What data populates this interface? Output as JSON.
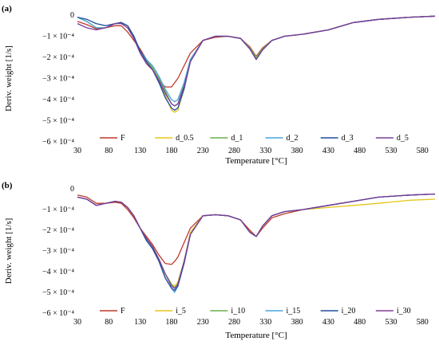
{
  "figure": {
    "panel_labels": [
      "(a)",
      "(b)"
    ]
  },
  "chart_data": [
    {
      "type": "line",
      "panel": "(a)",
      "xlabel": "Temperature [°C]",
      "ylabel": "Deriv. weight [1/s]",
      "x_ticks": [
        30,
        80,
        130,
        180,
        230,
        280,
        330,
        380,
        430,
        480,
        530,
        580
      ],
      "y_ticks": [
        "0",
        "−1 × 10⁻⁴",
        "−2 × 10⁻⁴",
        "−3 × 10⁻⁴",
        "−4 × 10⁻⁴",
        "−5 × 10⁻⁴",
        "−6 × 10⁻⁴"
      ],
      "xlim": [
        30,
        600
      ],
      "ylim": [
        -0.0006,
        0
      ],
      "x": [
        30,
        45,
        60,
        75,
        90,
        100,
        110,
        120,
        130,
        140,
        150,
        160,
        170,
        180,
        185,
        190,
        200,
        210,
        230,
        250,
        270,
        290,
        305,
        315,
        325,
        340,
        360,
        390,
        430,
        470,
        510,
        560,
        600
      ],
      "series": [
        {
          "name": "F",
          "color": "#c0392b",
          "values": [
            -3e-05,
            -4.5e-05,
            -6.5e-05,
            -6e-05,
            -5e-05,
            -5e-05,
            -8e-05,
            -0.00012,
            -0.00016,
            -0.00021,
            -0.00026,
            -0.00031,
            -0.00034,
            -0.00034,
            -0.00032,
            -0.0003,
            -0.00024,
            -0.00018,
            -0.00012,
            -0.000105,
            -0.0001,
            -0.00011,
            -0.00015,
            -0.000195,
            -0.000155,
            -0.00012,
            -0.0001,
            -9e-05,
            -7e-05,
            -3.5e-05,
            -2e-05,
            -1e-05,
            -5e-06
          ]
        },
        {
          "name": "d_0.5",
          "color": "#e6c619",
          "values": [
            -1e-05,
            -3e-05,
            -6e-05,
            -6e-05,
            -4e-05,
            -3.5e-05,
            -5e-05,
            -0.0001,
            -0.00017,
            -0.00022,
            -0.00025,
            -0.00031,
            -0.00038,
            -0.00045,
            -0.00046,
            -0.00045,
            -0.00035,
            -0.00022,
            -0.00012,
            -0.0001,
            -0.0001,
            -0.00011,
            -0.000155,
            -0.0002,
            -0.00016,
            -0.00012,
            -0.0001,
            -9e-05,
            -7e-05,
            -3.5e-05,
            -2e-05,
            -1e-05,
            -5e-06
          ]
        },
        {
          "name": "d_1",
          "color": "#6ab04c",
          "values": [
            -1e-05,
            -3e-05,
            -6e-05,
            -6e-05,
            -4e-05,
            -3.5e-05,
            -5e-05,
            -0.0001,
            -0.00017,
            -0.00021,
            -0.00025,
            -0.0003,
            -0.00036,
            -0.00042,
            -0.00043,
            -0.00042,
            -0.00033,
            -0.00021,
            -0.00012,
            -0.0001,
            -0.0001,
            -0.00011,
            -0.000155,
            -0.0002,
            -0.00016,
            -0.00012,
            -0.0001,
            -9e-05,
            -7e-05,
            -3.5e-05,
            -2e-05,
            -1e-05,
            -5e-06
          ]
        },
        {
          "name": "d_2",
          "color": "#4aa3df",
          "values": [
            -1e-05,
            -3e-05,
            -6e-05,
            -6e-05,
            -4e-05,
            -3.5e-05,
            -5e-05,
            -0.0001,
            -0.00017,
            -0.00021,
            -0.00024,
            -0.00029,
            -0.00035,
            -0.0004,
            -0.00041,
            -0.0004,
            -0.00032,
            -0.00021,
            -0.00012,
            -0.0001,
            -0.0001,
            -0.00011,
            -0.00016,
            -0.00021,
            -0.000165,
            -0.00012,
            -0.0001,
            -9e-05,
            -7e-05,
            -3.5e-05,
            -2e-05,
            -1e-05,
            -5e-06
          ]
        },
        {
          "name": "d_3",
          "color": "#1f4e9c",
          "values": [
            -1e-05,
            -2e-05,
            -4e-05,
            -5e-05,
            -4e-05,
            -3.5e-05,
            -5e-05,
            -0.0001,
            -0.00017,
            -0.00022,
            -0.00026,
            -0.00032,
            -0.00039,
            -0.00044,
            -0.00045,
            -0.00044,
            -0.00035,
            -0.00022,
            -0.00012,
            -0.0001,
            -0.0001,
            -0.00011,
            -0.00016,
            -0.00021,
            -0.000165,
            -0.00012,
            -0.0001,
            -9e-05,
            -7e-05,
            -3.5e-05,
            -2e-05,
            -1e-05,
            -5e-06
          ]
        },
        {
          "name": "d_5",
          "color": "#7d3c98",
          "values": [
            -4e-05,
            -6e-05,
            -7e-05,
            -6e-05,
            -4e-05,
            -4e-05,
            -6e-05,
            -0.00011,
            -0.00018,
            -0.00023,
            -0.00026,
            -0.00031,
            -0.00037,
            -0.00042,
            -0.00043,
            -0.00042,
            -0.00034,
            -0.00022,
            -0.00012,
            -0.0001,
            -0.0001,
            -0.00011,
            -0.00016,
            -0.00021,
            -0.000165,
            -0.00012,
            -0.0001,
            -9e-05,
            -7e-05,
            -3.5e-05,
            -2e-05,
            -1e-05,
            -5e-06
          ]
        }
      ]
    },
    {
      "type": "line",
      "panel": "(b)",
      "xlabel": "Temperature [°C]",
      "ylabel": "Deriv. weight [1/s]",
      "x_ticks": [
        30,
        80,
        130,
        180,
        230,
        280,
        330,
        380,
        430,
        480,
        530,
        580
      ],
      "y_ticks": [
        "0",
        "−1 × 10⁻⁴",
        "−2 × 10⁻⁴",
        "−3 × 10⁻⁴",
        "−4 × 10⁻⁴",
        "−5 × 10⁻⁴",
        "−6 × 10⁻⁴"
      ],
      "xlim": [
        30,
        600
      ],
      "ylim": [
        -0.0006,
        0
      ],
      "x": [
        30,
        45,
        60,
        75,
        90,
        100,
        110,
        120,
        130,
        140,
        150,
        160,
        170,
        180,
        185,
        190,
        200,
        210,
        230,
        250,
        270,
        290,
        305,
        315,
        325,
        340,
        360,
        390,
        430,
        470,
        510,
        560,
        600
      ],
      "series": [
        {
          "name": "F",
          "color": "#c0392b",
          "values": [
            -3e-05,
            -4e-05,
            -7e-05,
            -7e-05,
            -6.5e-05,
            -7e-05,
            -0.0001,
            -0.00014,
            -0.00019,
            -0.00023,
            -0.00027,
            -0.00032,
            -0.00036,
            -0.000365,
            -0.00035,
            -0.00033,
            -0.00026,
            -0.00019,
            -0.00013,
            -0.000125,
            -0.00013,
            -0.00015,
            -0.0002,
            -0.00023,
            -0.00019,
            -0.00014,
            -0.00012,
            -0.0001,
            -8e-05,
            -6e-05,
            -4e-05,
            -3e-05,
            -2.5e-05
          ]
        },
        {
          "name": "i_5",
          "color": "#e6c619",
          "values": [
            -4e-05,
            -5e-05,
            -8e-05,
            -7e-05,
            -6e-05,
            -6.5e-05,
            -9e-05,
            -0.00013,
            -0.00019,
            -0.00024,
            -0.00028,
            -0.00034,
            -0.00041,
            -0.00046,
            -0.00047,
            -0.00045,
            -0.00035,
            -0.00021,
            -0.00013,
            -0.000125,
            -0.00013,
            -0.00015,
            -0.00021,
            -0.00023,
            -0.00018,
            -0.00013,
            -0.00011,
            -0.0001,
            -9e-05,
            -8e-05,
            -7e-05,
            -5.5e-05,
            -5e-05
          ]
        },
        {
          "name": "i_10",
          "color": "#6ab04c",
          "values": [
            -4e-05,
            -5e-05,
            -8e-05,
            -7e-05,
            -6e-05,
            -6.5e-05,
            -9e-05,
            -0.00013,
            -0.00019,
            -0.00024,
            -0.00028,
            -0.00034,
            -0.00041,
            -0.00046,
            -0.00048,
            -0.00046,
            -0.00036,
            -0.00022,
            -0.00013,
            -0.000125,
            -0.00013,
            -0.00015,
            -0.00021,
            -0.00023,
            -0.00018,
            -0.00013,
            -0.00011,
            -0.0001,
            -8e-05,
            -6e-05,
            -4e-05,
            -3e-05,
            -2.5e-05
          ]
        },
        {
          "name": "i_15",
          "color": "#4aa3df",
          "values": [
            -4e-05,
            -5e-05,
            -8e-05,
            -7e-05,
            -6e-05,
            -6.5e-05,
            -9e-05,
            -0.00013,
            -0.00019,
            -0.00025,
            -0.00029,
            -0.00035,
            -0.00043,
            -0.00048,
            -0.0005,
            -0.00047,
            -0.00036,
            -0.00022,
            -0.00013,
            -0.000125,
            -0.00013,
            -0.00015,
            -0.00021,
            -0.00023,
            -0.00018,
            -0.00013,
            -0.00011,
            -0.0001,
            -8e-05,
            -6e-05,
            -4e-05,
            -3e-05,
            -2.5e-05
          ]
        },
        {
          "name": "i_20",
          "color": "#1f4e9c",
          "values": [
            -4e-05,
            -5e-05,
            -8e-05,
            -7e-05,
            -6e-05,
            -6.5e-05,
            -9e-05,
            -0.00013,
            -0.00019,
            -0.00025,
            -0.00029,
            -0.00035,
            -0.00043,
            -0.00048,
            -0.00049,
            -0.00047,
            -0.00036,
            -0.00022,
            -0.00013,
            -0.000125,
            -0.00013,
            -0.00015,
            -0.00021,
            -0.00023,
            -0.00018,
            -0.00013,
            -0.00011,
            -0.0001,
            -8e-05,
            -6e-05,
            -4e-05,
            -3e-05,
            -2.5e-05
          ]
        },
        {
          "name": "i_30",
          "color": "#7d3c98",
          "values": [
            -4e-05,
            -5e-05,
            -8e-05,
            -7e-05,
            -6e-05,
            -6.5e-05,
            -9e-05,
            -0.00013,
            -0.00019,
            -0.00024,
            -0.00028,
            -0.00034,
            -0.00041,
            -0.00047,
            -0.00048,
            -0.00046,
            -0.00035,
            -0.00022,
            -0.00013,
            -0.000125,
            -0.00013,
            -0.00015,
            -0.00021,
            -0.00023,
            -0.00018,
            -0.00013,
            -0.00011,
            -0.0001,
            -8e-05,
            -6e-05,
            -4e-05,
            -3e-05,
            -2.5e-05
          ]
        }
      ]
    }
  ]
}
